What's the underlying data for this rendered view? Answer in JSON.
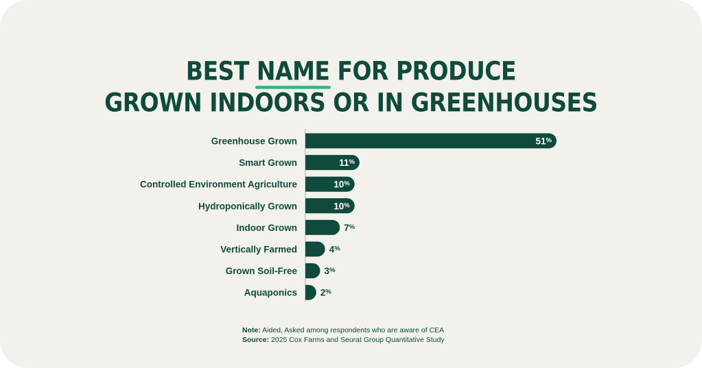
{
  "title": {
    "line1_before": "BEST",
    "line1_highlight": "NAME",
    "line1_after": "FOR PRODUCE",
    "line2": "GROWN INDOORS OR IN GREENHOUSES"
  },
  "colors": {
    "bar": "#0f4a3c",
    "highlight_underline": "#2fb58a",
    "background": "#f2f1ec"
  },
  "chart_data": {
    "type": "bar",
    "orientation": "horizontal",
    "categories": [
      "Greenhouse Grown",
      "Smart Grown",
      "Controlled Environment Agriculture",
      "Hydroponically Grown",
      "Indoor Grown",
      "Vertically Farmed",
      "Grown Soil-Free",
      "Aquaponics"
    ],
    "values": [
      51,
      11,
      10,
      10,
      7,
      4,
      3,
      2
    ],
    "value_labels": [
      "51%",
      "11%",
      "10%",
      "10%",
      "7%",
      "4%",
      "3%",
      "2%"
    ],
    "xlim": [
      0,
      51
    ],
    "grid": false,
    "legend": "none"
  },
  "notes": {
    "note_label": "Note:",
    "note_text": " Aided, Asked among respondents who are aware of CEA",
    "source_label": "Source:",
    "source_text": " 2025 Cox Farms and Seurat Group Quantitative Study"
  }
}
